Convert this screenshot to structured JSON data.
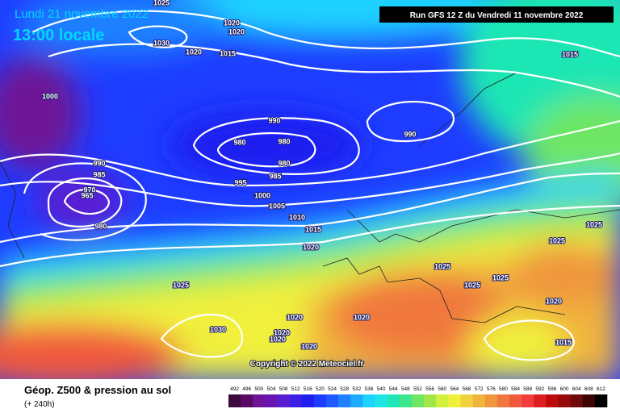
{
  "header": {
    "date": "Lundi 21 novembre 2022",
    "time": "13:00 locale",
    "run": "Run GFS 12 Z du Vendredi 11 novembre 2022"
  },
  "copyright": "Copyright © 2022 Meteociel.fr",
  "isobar_labels": [
    1025,
    1020,
    1020,
    1030,
    1020,
    1015,
    1015,
    1000,
    990,
    990,
    980,
    980,
    980,
    985,
    990,
    985,
    995,
    970,
    965,
    1000,
    980,
    1005,
    1010,
    1015,
    1025,
    1025,
    1020,
    1025,
    1025,
    1025,
    1025,
    1020,
    1020,
    1020,
    1030,
    1020,
    1020,
    1020,
    1015
  ],
  "footer": {
    "title": "Géop. Z500 & pression au sol",
    "lead": "(+ 240h)"
  },
  "colorbar": {
    "labels": [
      492,
      496,
      500,
      504,
      508,
      512,
      516,
      520,
      524,
      528,
      532,
      536,
      540,
      544,
      548,
      552,
      556,
      560,
      564,
      568,
      572,
      576,
      580,
      584,
      588,
      592,
      596,
      600,
      604,
      608,
      612
    ],
    "colors": [
      "#3c0a3c",
      "#5a0a64",
      "#6e1496",
      "#6a14b4",
      "#5a1ed2",
      "#3c1ee6",
      "#1e1ef0",
      "#1e3cff",
      "#1e5aff",
      "#1e82ff",
      "#1eaaff",
      "#1ed2ff",
      "#1ee6e6",
      "#1ee6b4",
      "#3ce68c",
      "#6ee664",
      "#a0e646",
      "#d2f03c",
      "#f0f03c",
      "#f0d23c",
      "#f0b43c",
      "#f0963c",
      "#f0783c",
      "#f05a3c",
      "#f03c3c",
      "#dc1e1e",
      "#be0a0a",
      "#960a0a",
      "#6e0a0a",
      "#3c0505",
      "#000000"
    ]
  }
}
